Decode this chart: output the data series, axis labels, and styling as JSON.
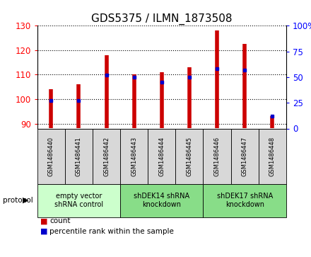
{
  "title": "GDS5375 / ILMN_1873508",
  "samples": [
    "GSM1486440",
    "GSM1486441",
    "GSM1486442",
    "GSM1486443",
    "GSM1486444",
    "GSM1486445",
    "GSM1486446",
    "GSM1486447",
    "GSM1486448"
  ],
  "counts": [
    104.0,
    106.0,
    118.0,
    110.0,
    111.0,
    113.0,
    128.0,
    122.5,
    93.0
  ],
  "percentiles": [
    27,
    27,
    52,
    50,
    45,
    50,
    58,
    57,
    12
  ],
  "bar_color": "#cc0000",
  "dot_color": "#0000cc",
  "ylim_left": [
    88,
    130
  ],
  "ylim_right": [
    0,
    100
  ],
  "yticks_left": [
    90,
    100,
    110,
    120,
    130
  ],
  "yticks_right": [
    0,
    25,
    50,
    75,
    100
  ],
  "ytick_labels_right": [
    "0",
    "25",
    "50",
    "75",
    "100%"
  ],
  "grid_color": "#000000",
  "groups": [
    {
      "label": "empty vector\nshRNA control",
      "start": 0,
      "end": 3,
      "color": "#ccffcc"
    },
    {
      "label": "shDEK14 shRNA\nknockdown",
      "start": 3,
      "end": 6,
      "color": "#88dd88"
    },
    {
      "label": "shDEK17 shRNA\nknockdown",
      "start": 6,
      "end": 9,
      "color": "#88dd88"
    }
  ],
  "legend_count_label": "count",
  "legend_pct_label": "percentile rank within the sample",
  "bar_width": 0.35,
  "bg_color": "#d8d8d8",
  "plot_bg": "#ffffff",
  "title_fontsize": 11
}
